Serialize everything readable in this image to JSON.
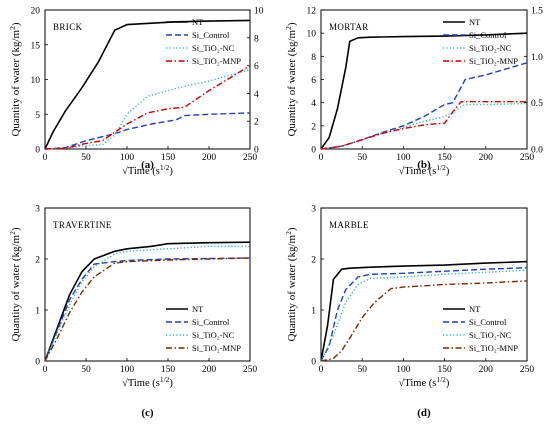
{
  "chart_data": [
    {
      "type": "line",
      "panel_label": "BRICK",
      "caption": "(a)",
      "xlabel": "√Time (s",
      "xlabel_sup": "1/2",
      "xlabel_end": ")",
      "ylabel": "Quantity of water (kg/m",
      "ylabel_sup": "2",
      "ylabel_end": ")",
      "xlim": [
        0,
        250
      ],
      "xticks": [
        "0",
        "50",
        "100",
        "150",
        "200",
        "250"
      ],
      "ylim": [
        0,
        20
      ],
      "yticks": [
        "0",
        "5",
        "10",
        "15",
        "20"
      ],
      "y2lim": [
        0,
        10
      ],
      "y2ticks": [
        "0",
        "2",
        "4",
        "6",
        "8",
        "10"
      ],
      "legend_position": "top-right",
      "series": [
        {
          "name": "NT",
          "color": "#000000",
          "dash": "solid",
          "axis": "left",
          "x": [
            0,
            10,
            25,
            45,
            65,
            85,
            100,
            130,
            160,
            200,
            250
          ],
          "y": [
            0,
            2.5,
            5.5,
            8.8,
            12.5,
            17.1,
            17.9,
            18.1,
            18.3,
            18.4,
            18.5
          ]
        },
        {
          "name": "Si_Control",
          "color": "#1f3fbf",
          "dash": "dashed",
          "axis": "right",
          "x": [
            0,
            25,
            50,
            85,
            100,
            130,
            160,
            170,
            200,
            250
          ],
          "y": [
            0,
            0.1,
            0.6,
            1.1,
            1.4,
            1.8,
            2.1,
            2.4,
            2.5,
            2.6
          ]
        },
        {
          "name": "Si_TiO₂-NC",
          "color": "#2bb5b5",
          "dash": "dotted",
          "axis": "right",
          "x": [
            0,
            25,
            50,
            70,
            85,
            100,
            125,
            150,
            170,
            200,
            250
          ],
          "y": [
            0,
            0.05,
            0.25,
            0.3,
            1.0,
            2.5,
            3.8,
            4.2,
            4.5,
            4.9,
            5.7
          ]
        },
        {
          "name": "Si_TiO₂-MNP",
          "color": "#cc0000",
          "dash": "dashdot",
          "axis": "right",
          "x": [
            0,
            25,
            50,
            70,
            85,
            100,
            125,
            150,
            170,
            200,
            250
          ],
          "y": [
            0,
            0.05,
            0.4,
            0.6,
            1.2,
            1.8,
            2.6,
            2.9,
            3.0,
            4.2,
            6.0
          ]
        }
      ]
    },
    {
      "type": "line",
      "panel_label": "MORTAR",
      "caption": "(b)",
      "xlabel": "√Time (s",
      "xlabel_sup": "1/2",
      "xlabel_end": ")",
      "ylabel": "Quantity of water (kg/m",
      "ylabel_sup": "2",
      "ylabel_end": ")",
      "xlim": [
        0,
        250
      ],
      "xticks": [
        "0",
        "50",
        "100",
        "150",
        "200",
        "250"
      ],
      "ylim": [
        0,
        12
      ],
      "yticks": [
        "0",
        "2",
        "4",
        "6",
        "8",
        "10",
        "12"
      ],
      "y2lim": [
        0,
        1.5
      ],
      "y2ticks": [
        "0.0",
        "0.5",
        "1.0",
        "1.5"
      ],
      "legend_position": "top-right",
      "series": [
        {
          "name": "NT",
          "color": "#000000",
          "dash": "solid",
          "axis": "left",
          "x": [
            0,
            10,
            20,
            30,
            35,
            45,
            60,
            100,
            150,
            200,
            250
          ],
          "y": [
            0,
            1.0,
            3.5,
            7.0,
            9.3,
            9.6,
            9.65,
            9.7,
            9.75,
            9.85,
            10.0
          ]
        },
        {
          "name": "Si_Control",
          "color": "#1f3fbf",
          "dash": "dashed",
          "axis": "right",
          "x": [
            0,
            25,
            50,
            75,
            100,
            125,
            150,
            160,
            175,
            200,
            250
          ],
          "y": [
            0,
            0.03,
            0.1,
            0.18,
            0.25,
            0.35,
            0.48,
            0.5,
            0.75,
            0.8,
            0.93
          ]
        },
        {
          "name": "Si_TiO₂-NC",
          "color": "#2bb5b5",
          "dash": "dotted",
          "axis": "right",
          "x": [
            0,
            25,
            50,
            75,
            100,
            125,
            150,
            160,
            175,
            200,
            250
          ],
          "y": [
            0,
            0.03,
            0.1,
            0.17,
            0.23,
            0.3,
            0.35,
            0.4,
            0.48,
            0.48,
            0.49
          ]
        },
        {
          "name": "Si_TiO₂-MNP",
          "color": "#cc0000",
          "dash": "dashdot",
          "axis": "right",
          "x": [
            0,
            25,
            50,
            75,
            100,
            125,
            150,
            160,
            170,
            200,
            250
          ],
          "y": [
            0,
            0.03,
            0.1,
            0.17,
            0.22,
            0.26,
            0.28,
            0.4,
            0.51,
            0.51,
            0.51
          ]
        }
      ]
    },
    {
      "type": "line",
      "panel_label": "TRAVERTINE",
      "caption": "(c)",
      "xlabel": "√Time (s",
      "xlabel_sup": "1/2",
      "xlabel_end": ")",
      "ylabel": "Quantity of water (kg/m",
      "ylabel_sup": "2",
      "ylabel_end": ")",
      "xlim": [
        0,
        250
      ],
      "xticks": [
        "0",
        "50",
        "100",
        "150",
        "200",
        "250"
      ],
      "ylim": [
        0,
        3
      ],
      "yticks": [
        "0",
        "1",
        "2",
        "3"
      ],
      "legend_position": "bottom-right",
      "series": [
        {
          "name": "NT",
          "color": "#000000",
          "dash": "solid",
          "axis": "left",
          "x": [
            0,
            15,
            30,
            45,
            60,
            85,
            100,
            130,
            150,
            200,
            250
          ],
          "y": [
            0,
            0.65,
            1.3,
            1.75,
            2.0,
            2.15,
            2.2,
            2.25,
            2.3,
            2.32,
            2.33
          ]
        },
        {
          "name": "Si_Control",
          "color": "#1f3fbf",
          "dash": "dashed",
          "axis": "left",
          "x": [
            0,
            15,
            30,
            45,
            60,
            85,
            100,
            150,
            200,
            250
          ],
          "y": [
            0,
            0.6,
            1.2,
            1.6,
            1.9,
            1.95,
            1.97,
            2.0,
            2.01,
            2.02
          ]
        },
        {
          "name": "Si_TiO₂-NC",
          "color": "#2bb5b5",
          "dash": "dotted",
          "axis": "left",
          "x": [
            0,
            15,
            30,
            45,
            60,
            85,
            100,
            150,
            200,
            250
          ],
          "y": [
            0,
            0.55,
            1.1,
            1.55,
            1.85,
            2.1,
            2.15,
            2.2,
            2.25,
            2.25
          ]
        },
        {
          "name": "Si_TiO₂-MNP",
          "color": "#7a2a00",
          "dash": "dashdot",
          "axis": "left",
          "x": [
            0,
            15,
            30,
            45,
            60,
            85,
            100,
            150,
            200,
            250
          ],
          "y": [
            0,
            0.45,
            0.95,
            1.35,
            1.65,
            1.92,
            1.95,
            1.98,
            2.0,
            2.02
          ]
        }
      ]
    },
    {
      "type": "line",
      "panel_label": "MARBLE",
      "caption": "(d)",
      "xlabel": "√Time (s",
      "xlabel_sup": "1/2",
      "xlabel_end": ")",
      "ylabel": "Quantity of water (kg/m",
      "ylabel_sup": "2",
      "ylabel_end": ")",
      "xlim": [
        0,
        250
      ],
      "xticks": [
        "0",
        "50",
        "100",
        "150",
        "200",
        "250"
      ],
      "ylim": [
        0,
        3
      ],
      "yticks": [
        "0",
        "1",
        "2",
        "3"
      ],
      "legend_position": "bottom-right",
      "series": [
        {
          "name": "NT",
          "color": "#000000",
          "dash": "solid",
          "axis": "left",
          "x": [
            0,
            8,
            15,
            25,
            35,
            60,
            100,
            150,
            200,
            250
          ],
          "y": [
            0,
            0.7,
            1.6,
            1.8,
            1.82,
            1.84,
            1.86,
            1.88,
            1.92,
            1.95
          ]
        },
        {
          "name": "Si_Control",
          "color": "#1f3fbf",
          "dash": "dashed",
          "axis": "left",
          "x": [
            0,
            10,
            20,
            30,
            45,
            60,
            100,
            150,
            200,
            250
          ],
          "y": [
            0,
            0.3,
            1.0,
            1.4,
            1.65,
            1.7,
            1.72,
            1.76,
            1.8,
            1.83
          ]
        },
        {
          "name": "Si_TiO₂-NC",
          "color": "#2bb5b5",
          "dash": "dotted",
          "axis": "left",
          "x": [
            0,
            15,
            30,
            45,
            60,
            100,
            150,
            200,
            250
          ],
          "y": [
            0,
            0.5,
            1.15,
            1.5,
            1.62,
            1.65,
            1.7,
            1.74,
            1.78
          ]
        },
        {
          "name": "Si_TiO₂-MNP",
          "color": "#7a2a00",
          "dash": "dashdot",
          "axis": "left",
          "x": [
            0,
            15,
            25,
            35,
            50,
            65,
            85,
            100,
            150,
            200,
            250
          ],
          "y": [
            0,
            0.05,
            0.2,
            0.45,
            0.85,
            1.15,
            1.42,
            1.45,
            1.5,
            1.53,
            1.57
          ]
        }
      ]
    }
  ]
}
